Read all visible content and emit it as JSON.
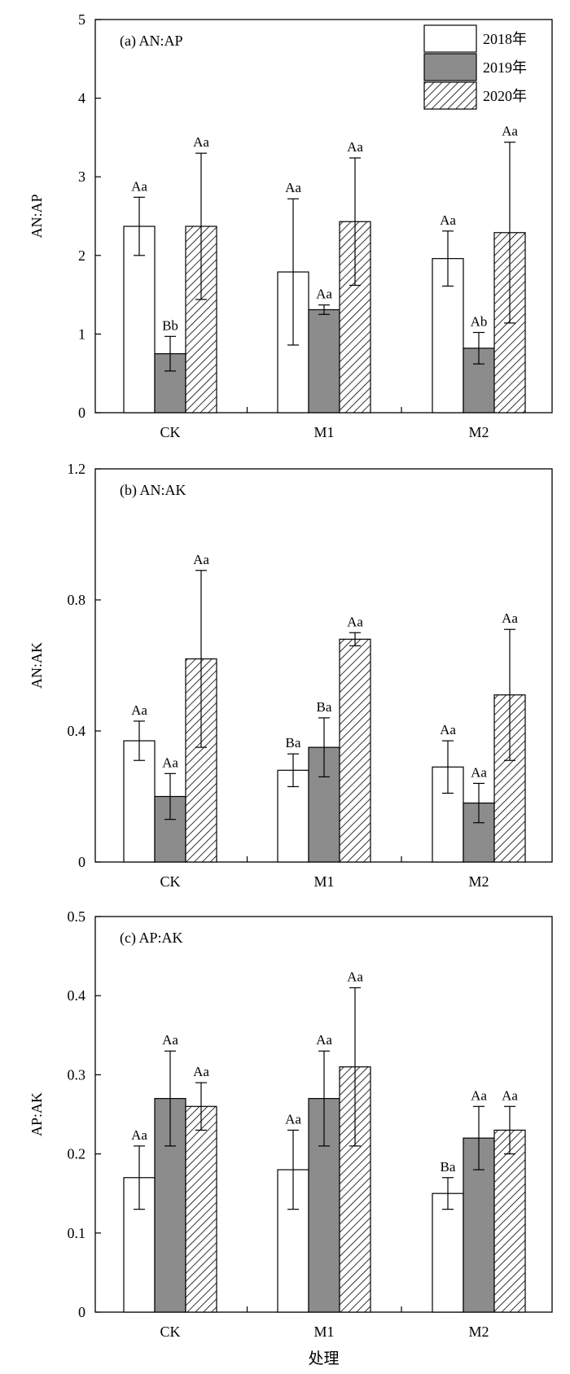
{
  "chart_data": [
    {
      "type": "bar",
      "title": "(a) AN:AP",
      "ylabel": "AN:AP",
      "xlabel": "",
      "ylim": [
        0,
        5
      ],
      "yticks": [
        "0",
        "1",
        "2",
        "3",
        "4",
        "5"
      ],
      "categories": [
        "CK",
        "M1",
        "M2"
      ],
      "series": [
        {
          "name": "2018年",
          "values": [
            2.37,
            1.79,
            1.96
          ],
          "errors": [
            0.37,
            0.93,
            0.35
          ],
          "labels": [
            "Aa",
            "Aa",
            "Aa"
          ]
        },
        {
          "name": "2019年",
          "values": [
            0.75,
            1.31,
            0.82
          ],
          "errors": [
            0.22,
            0.06,
            0.2
          ],
          "labels": [
            "Bb",
            "Aa",
            "Ab"
          ]
        },
        {
          "name": "2020年",
          "values": [
            2.37,
            2.43,
            2.29
          ],
          "errors": [
            0.93,
            0.81,
            1.15
          ],
          "labels": [
            "Aa",
            "Aa",
            "Aa"
          ]
        }
      ],
      "legend": {
        "position": "top-right",
        "show": true
      }
    },
    {
      "type": "bar",
      "title": "(b) AN:AK",
      "ylabel": "AN:AK",
      "xlabel": "",
      "ylim": [
        0,
        1.2
      ],
      "yticks": [
        "0",
        "0.4",
        "0.8",
        "1.2"
      ],
      "categories": [
        "CK",
        "M1",
        "M2"
      ],
      "series": [
        {
          "name": "2018年",
          "values": [
            0.37,
            0.28,
            0.29
          ],
          "errors": [
            0.06,
            0.05,
            0.08
          ],
          "labels": [
            "Aa",
            "Ba",
            "Aa"
          ]
        },
        {
          "name": "2019年",
          "values": [
            0.2,
            0.35,
            0.18
          ],
          "errors": [
            0.07,
            0.09,
            0.06
          ],
          "labels": [
            "Aa",
            "Ba",
            "Aa"
          ]
        },
        {
          "name": "2020年",
          "values": [
            0.62,
            0.68,
            0.51
          ],
          "errors": [
            0.27,
            0.02,
            0.2
          ],
          "labels": [
            "Aa",
            "Aa",
            "Aa"
          ]
        }
      ],
      "legend": {
        "show": false
      }
    },
    {
      "type": "bar",
      "title": "(c) AP:AK",
      "ylabel": "AP:AK",
      "xlabel": "处理",
      "ylim": [
        0,
        0.5
      ],
      "yticks": [
        "0",
        "0.1",
        "0.2",
        "0.3",
        "0.4",
        "0.5"
      ],
      "categories": [
        "CK",
        "M1",
        "M2"
      ],
      "series": [
        {
          "name": "2018年",
          "values": [
            0.17,
            0.18,
            0.15
          ],
          "errors": [
            0.04,
            0.05,
            0.02
          ],
          "labels": [
            "Aa",
            "Aa",
            "Ba"
          ]
        },
        {
          "name": "2019年",
          "values": [
            0.27,
            0.27,
            0.22
          ],
          "errors": [
            0.06,
            0.06,
            0.04
          ],
          "labels": [
            "Aa",
            "Aa",
            "Aa"
          ]
        },
        {
          "name": "2020年",
          "values": [
            0.26,
            0.31,
            0.23
          ],
          "errors": [
            0.03,
            0.1,
            0.03
          ],
          "labels": [
            "Aa",
            "Aa",
            "Aa"
          ]
        }
      ],
      "legend": {
        "show": false
      }
    }
  ],
  "colors": {
    "fill_2018": "#ffffff",
    "fill_2019": "#8c8c8c",
    "fill_2020": "hatch",
    "axis": "#000000"
  }
}
